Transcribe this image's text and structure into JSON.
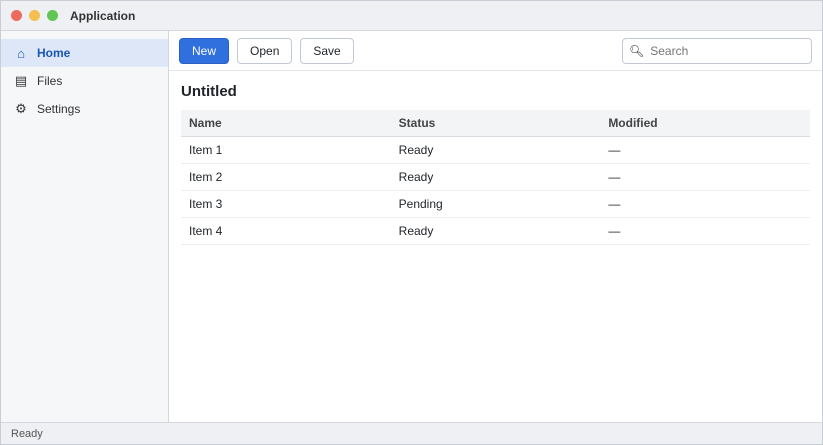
{
  "window": {
    "title": "Application",
    "controls": [
      {
        "name": "close-button",
        "color": "#ec6a5e"
      },
      {
        "name": "minimize-button",
        "color": "#f4bf4f"
      },
      {
        "name": "maximize-button",
        "color": "#61c554"
      }
    ]
  },
  "sidebar": {
    "items": [
      {
        "name": "sidebar-item-home",
        "icon": "home-icon",
        "glyph": "⌂",
        "label": "Home",
        "active": true
      },
      {
        "name": "sidebar-item-files",
        "icon": "folder-icon",
        "glyph": "▤",
        "label": "Files",
        "active": false
      },
      {
        "name": "sidebar-item-settings",
        "icon": "gear-icon",
        "glyph": "⚙",
        "label": "Settings",
        "active": false
      }
    ]
  },
  "toolbar": {
    "new_label": "New",
    "open_label": "Open",
    "save_label": "Save",
    "search_placeholder": "Search"
  },
  "main": {
    "title": "Untitled",
    "columns": [
      "Name",
      "Status",
      "Modified"
    ],
    "rows": [
      [
        "Item 1",
        "Ready",
        "—"
      ],
      [
        "Item 2",
        "Ready",
        "—"
      ],
      [
        "Item 3",
        "Pending",
        "—"
      ],
      [
        "Item 4",
        "Ready",
        "—"
      ]
    ]
  },
  "status": {
    "text": "Ready"
  },
  "colors": {
    "accent": "#2f6fde"
  }
}
